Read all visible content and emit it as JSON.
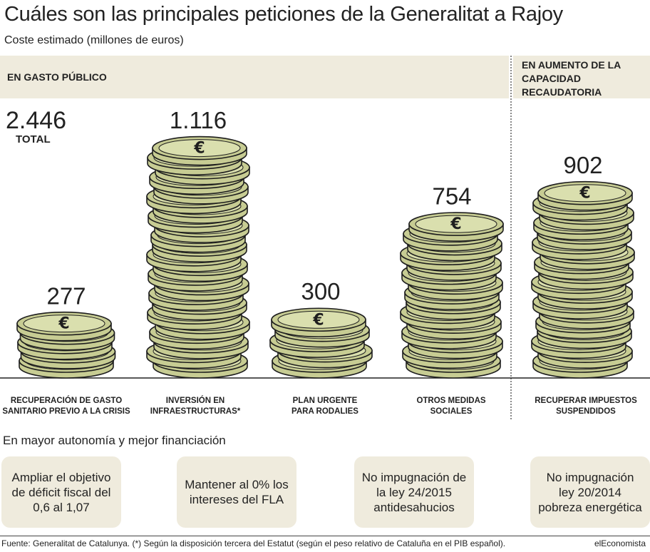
{
  "header": {
    "title": "Cuáles son las principales peticiones de la Generalitat a Rajoy",
    "subtitle": "Coste estimado (millones de euros)"
  },
  "sections": {
    "gasto": "EN GASTO PÚBLICO",
    "recaudacion": "EN AUMENTO DE LA CAPACIDAD RECAUDATORIA"
  },
  "total": {
    "value": "2.446",
    "label": "TOTAL"
  },
  "chart_data": {
    "type": "bar",
    "title": "Cuáles son las principales peticiones de la Generalitat a Rajoy",
    "ylabel": "Coste estimado (millones de euros)",
    "categories": [
      "RECUPERACIÓN DE GASTO SANITARIO PREVIO A LA CRISIS",
      "INVERSIÓN EN INFRAESTRUCTURAS*",
      "PLAN URGENTE PARA RODALIES",
      "OTROS MEDIDAS SOCIALES",
      "RECUPERAR IMPUESTOS SUSPENDIDOS"
    ],
    "values": [
      277,
      1116,
      300,
      754,
      902
    ],
    "value_labels": [
      "277",
      "1.116",
      "300",
      "754",
      "902"
    ],
    "groups": [
      "EN GASTO PÚBLICO",
      "EN GASTO PÚBLICO",
      "EN GASTO PÚBLICO",
      "EN GASTO PÚBLICO",
      "EN AUMENTO DE LA CAPACIDAD RECAUDATORIA"
    ],
    "ylim": [
      0,
      1116
    ],
    "grid": false
  },
  "category_labels": [
    [
      "RECUPERACIÓN DE GASTO",
      "SANITARIO PREVIO A LA CRISIS"
    ],
    [
      "INVERSIÓN EN",
      "INFRAESTRUCTURAS*"
    ],
    [
      "PLAN URGENTE",
      "PARA RODALIES"
    ],
    [
      "OTROS MEDIDAS",
      "SOCIALES"
    ],
    [
      "RECUPERAR IMPUESTOS",
      "SUSPENDIDOS"
    ]
  ],
  "autonomy": {
    "title": "En mayor autonomía y mejor financiación",
    "items": [
      "Ampliar el objetivo de déficit fiscal del 0,6 al 1,07",
      "Mantener al 0% los intereses del FLA",
      "No impugnación de la ley 24/2015 antidesahucios",
      "No impugnación ley 20/2014 pobreza energética"
    ]
  },
  "footer": {
    "source": "Fuente: Generalitat de Catalunya. (*) Según la disposición tercera del Estatut (según el peso relativo de Cataluña en el PIB español).",
    "brand": "elEconomista"
  },
  "colors": {
    "coin_fill": "#c7cc93",
    "coin_face": "#dadfae",
    "coin_stroke": "#1e1e1e",
    "band": "#efebdd"
  },
  "icons": {
    "coin": "euro-coin-icon"
  }
}
